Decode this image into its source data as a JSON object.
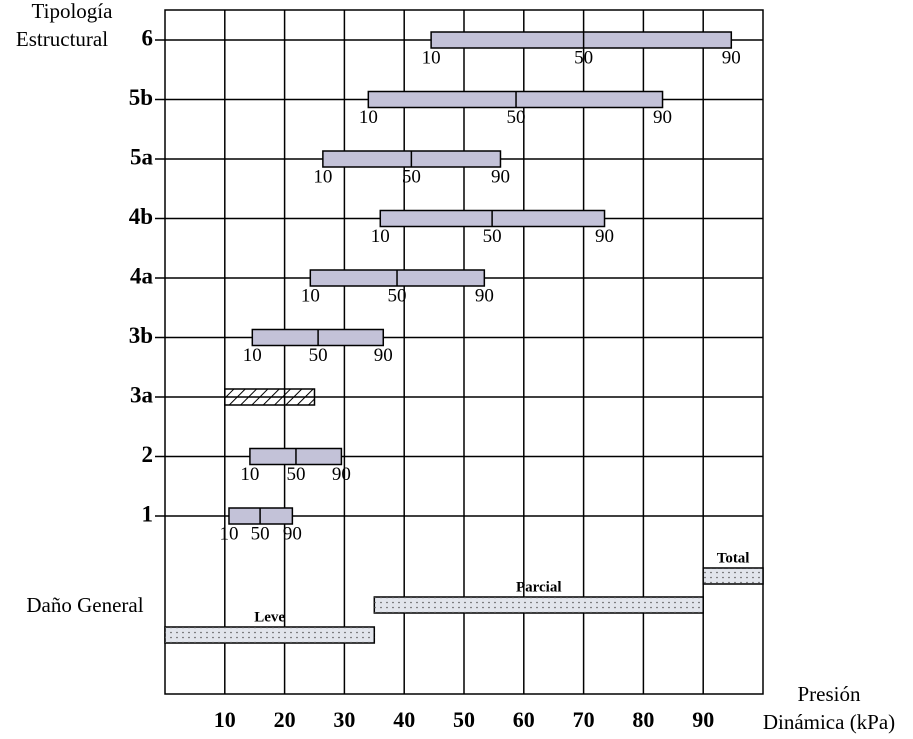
{
  "chart_data": {
    "type": "range",
    "y_axis_label": [
      "Tipología",
      "Estructural"
    ],
    "x_axis_label": [
      "Presión",
      "Dinámica (kPa)"
    ],
    "categories": [
      "6",
      "5b",
      "5a",
      "4b",
      "4a",
      "3b",
      "3a",
      "2",
      "1"
    ],
    "low": [
      44.5,
      34,
      26.4,
      36,
      24.3,
      14.6,
      10,
      14.2,
      10.7
    ],
    "median": [
      70,
      58.7,
      41.2,
      54.7,
      38.8,
      25.6,
      null,
      21.9,
      15.9
    ],
    "high": [
      94.7,
      83.2,
      56.1,
      73.5,
      53.4,
      36.5,
      25,
      29.5,
      21.3
    ],
    "hatched": [
      false,
      false,
      false,
      false,
      false,
      false,
      true,
      false,
      false
    ],
    "percentile_labels": [
      "10",
      "50",
      "90"
    ],
    "color": "#c3c2d8",
    "xlim": [
      0,
      100
    ],
    "xticks": [
      10,
      20,
      30,
      40,
      50,
      60,
      70,
      80,
      90
    ],
    "grid": true,
    "damage": {
      "label": "Daño General",
      "color": "#e2e5ec",
      "bands": [
        {
          "name": "Leve",
          "start": 0,
          "end": 35
        },
        {
          "name": "Parcial",
          "start": 35,
          "end": 90
        },
        {
          "name": "Total",
          "start": 90,
          "end": 100
        }
      ]
    }
  }
}
